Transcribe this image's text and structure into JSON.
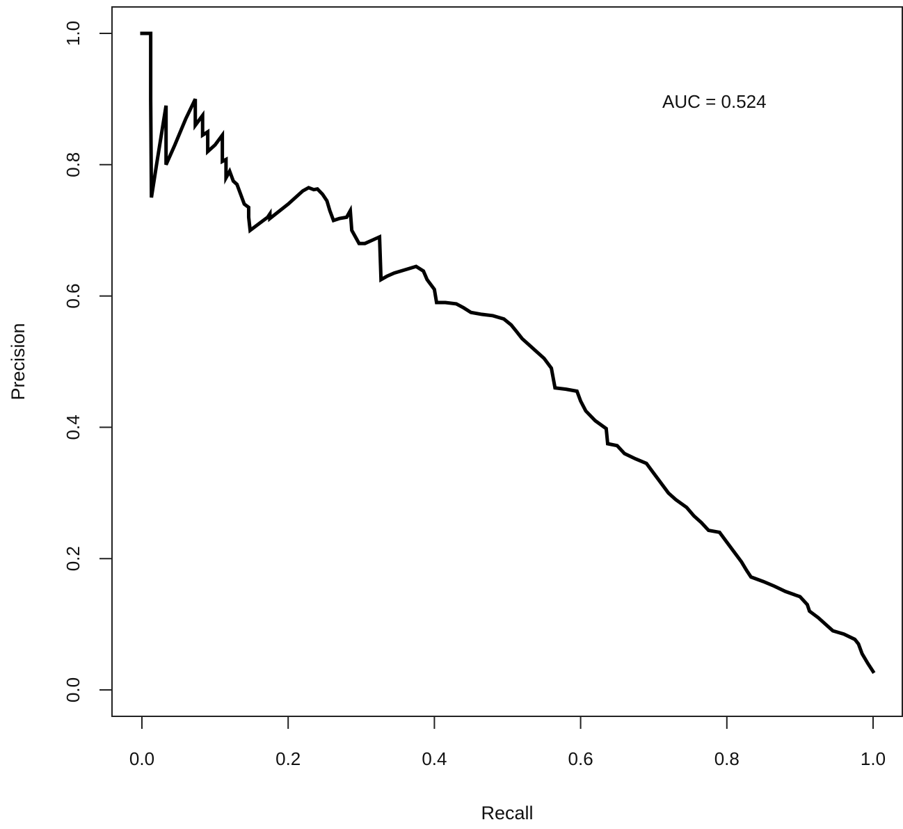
{
  "chart_data": {
    "type": "line",
    "title": "",
    "xlabel": "Recall",
    "ylabel": "Precision",
    "xlim": [
      0,
      1
    ],
    "ylim": [
      0,
      1
    ],
    "x_ticks": [
      "0.0",
      "0.2",
      "0.4",
      "0.6",
      "0.8",
      "1.0"
    ],
    "y_ticks": [
      "0.0",
      "0.2",
      "0.4",
      "0.6",
      "0.8",
      "1.0"
    ],
    "grid": false,
    "legend": "none",
    "annotation": "AUC = 0.524",
    "line_color": "#000000",
    "series": [
      {
        "values": [
          [
            0.0,
            1.0
          ],
          [
            0.012,
            1.0
          ],
          [
            0.012,
            0.9
          ],
          [
            0.013,
            0.75
          ],
          [
            0.02,
            0.8
          ],
          [
            0.033,
            0.89
          ],
          [
            0.033,
            0.8
          ],
          [
            0.045,
            0.83
          ],
          [
            0.06,
            0.87
          ],
          [
            0.073,
            0.9
          ],
          [
            0.073,
            0.86
          ],
          [
            0.083,
            0.875
          ],
          [
            0.083,
            0.845
          ],
          [
            0.09,
            0.85
          ],
          [
            0.09,
            0.82
          ],
          [
            0.1,
            0.83
          ],
          [
            0.11,
            0.845
          ],
          [
            0.11,
            0.805
          ],
          [
            0.115,
            0.808
          ],
          [
            0.115,
            0.78
          ],
          [
            0.12,
            0.79
          ],
          [
            0.125,
            0.775
          ],
          [
            0.13,
            0.77
          ],
          [
            0.135,
            0.755
          ],
          [
            0.14,
            0.74
          ],
          [
            0.146,
            0.735
          ],
          [
            0.146,
            0.72
          ],
          [
            0.148,
            0.7
          ],
          [
            0.16,
            0.71
          ],
          [
            0.172,
            0.72
          ],
          [
            0.175,
            0.725
          ],
          [
            0.175,
            0.718
          ],
          [
            0.2,
            0.74
          ],
          [
            0.22,
            0.76
          ],
          [
            0.228,
            0.765
          ],
          [
            0.235,
            0.762
          ],
          [
            0.24,
            0.763
          ],
          [
            0.247,
            0.755
          ],
          [
            0.253,
            0.745
          ],
          [
            0.257,
            0.73
          ],
          [
            0.262,
            0.715
          ],
          [
            0.27,
            0.718
          ],
          [
            0.28,
            0.72
          ],
          [
            0.285,
            0.73
          ],
          [
            0.287,
            0.7
          ],
          [
            0.292,
            0.69
          ],
          [
            0.297,
            0.68
          ],
          [
            0.305,
            0.68
          ],
          [
            0.315,
            0.685
          ],
          [
            0.325,
            0.69
          ],
          [
            0.327,
            0.625
          ],
          [
            0.335,
            0.63
          ],
          [
            0.345,
            0.635
          ],
          [
            0.36,
            0.64
          ],
          [
            0.375,
            0.645
          ],
          [
            0.385,
            0.638
          ],
          [
            0.39,
            0.625
          ],
          [
            0.4,
            0.61
          ],
          [
            0.403,
            0.59
          ],
          [
            0.415,
            0.59
          ],
          [
            0.43,
            0.588
          ],
          [
            0.44,
            0.582
          ],
          [
            0.45,
            0.575
          ],
          [
            0.465,
            0.572
          ],
          [
            0.48,
            0.57
          ],
          [
            0.495,
            0.565
          ],
          [
            0.505,
            0.556
          ],
          [
            0.513,
            0.545
          ],
          [
            0.52,
            0.535
          ],
          [
            0.53,
            0.525
          ],
          [
            0.54,
            0.515
          ],
          [
            0.55,
            0.505
          ],
          [
            0.56,
            0.49
          ],
          [
            0.565,
            0.46
          ],
          [
            0.58,
            0.458
          ],
          [
            0.595,
            0.455
          ],
          [
            0.6,
            0.44
          ],
          [
            0.607,
            0.425
          ],
          [
            0.62,
            0.41
          ],
          [
            0.635,
            0.398
          ],
          [
            0.637,
            0.375
          ],
          [
            0.65,
            0.372
          ],
          [
            0.66,
            0.36
          ],
          [
            0.675,
            0.352
          ],
          [
            0.69,
            0.345
          ],
          [
            0.7,
            0.33
          ],
          [
            0.71,
            0.315
          ],
          [
            0.72,
            0.3
          ],
          [
            0.73,
            0.29
          ],
          [
            0.745,
            0.278
          ],
          [
            0.755,
            0.265
          ],
          [
            0.765,
            0.255
          ],
          [
            0.775,
            0.243
          ],
          [
            0.79,
            0.24
          ],
          [
            0.8,
            0.225
          ],
          [
            0.81,
            0.21
          ],
          [
            0.82,
            0.195
          ],
          [
            0.827,
            0.182
          ],
          [
            0.833,
            0.172
          ],
          [
            0.85,
            0.165
          ],
          [
            0.865,
            0.158
          ],
          [
            0.88,
            0.15
          ],
          [
            0.9,
            0.142
          ],
          [
            0.91,
            0.13
          ],
          [
            0.913,
            0.12
          ],
          [
            0.925,
            0.11
          ],
          [
            0.935,
            0.1
          ],
          [
            0.945,
            0.09
          ],
          [
            0.96,
            0.085
          ],
          [
            0.975,
            0.077
          ],
          [
            0.98,
            0.07
          ],
          [
            0.985,
            0.055
          ],
          [
            0.993,
            0.04
          ],
          [
            1.0,
            0.028
          ]
        ]
      }
    ]
  }
}
